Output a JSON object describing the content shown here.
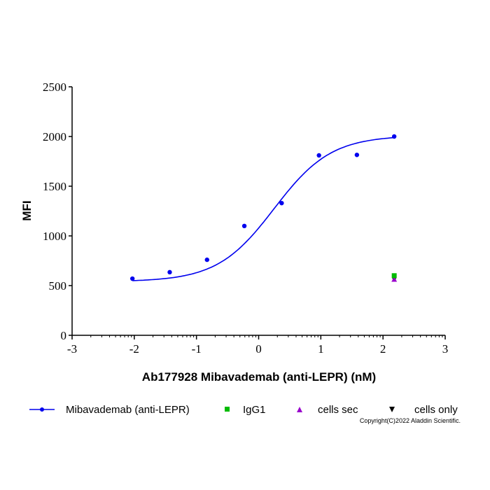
{
  "chart_data": {
    "type": "scatter",
    "title": "",
    "xlabel": "Ab177928 Mibavademab (anti-LEPR) (nM)",
    "ylabel": "MFI",
    "xlim": [
      -3,
      3
    ],
    "ylim": [
      0,
      2500
    ],
    "x_ticks": [
      -3,
      -2,
      -1,
      0,
      1,
      2,
      3
    ],
    "y_ticks": [
      0,
      500,
      1000,
      1500,
      2000,
      2500
    ],
    "grid": false,
    "legend_position": "bottom",
    "series": [
      {
        "name": "Mibavademab (anti-LEPR)",
        "color": "#0000ee",
        "marker": "circle",
        "line": "sigmoid fit",
        "x": [
          -2.03,
          -1.43,
          -0.83,
          -0.23,
          0.37,
          0.97,
          1.58,
          2.18
        ],
        "values": [
          570,
          635,
          760,
          1100,
          1330,
          1810,
          1815,
          2000
        ],
        "fit": {
          "bottom": 540,
          "top": 2010,
          "logEC50": 0.25,
          "hill": 0.95
        }
      },
      {
        "name": "IgG1",
        "color": "#00bb00",
        "marker": "square",
        "x": [
          2.18
        ],
        "values": [
          600
        ]
      },
      {
        "name": "cells sec",
        "color": "#9900cc",
        "marker": "triangle-up",
        "x": [
          2.18
        ],
        "values": [
          560
        ]
      },
      {
        "name": "cells only",
        "color": "#000000",
        "marker": "triangle-down",
        "x": [
          2.18
        ],
        "values": [
          560
        ]
      }
    ]
  },
  "legend": {
    "items": [
      {
        "label": "Mibavademab (anti-LEPR)"
      },
      {
        "label": "IgG1"
      },
      {
        "label": "cells sec"
      },
      {
        "label": "cells only"
      }
    ]
  },
  "copyright": "Copyright(C)2022 Aladdin Scientific."
}
